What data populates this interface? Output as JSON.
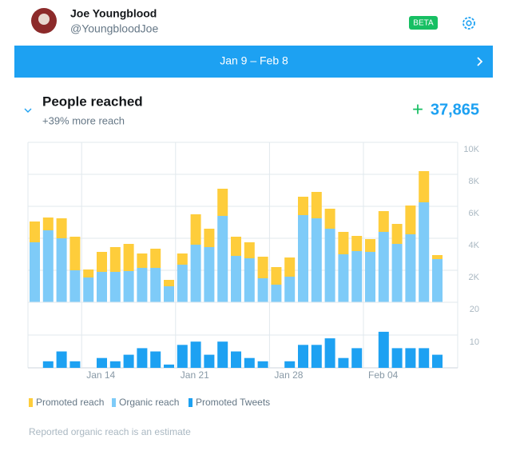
{
  "header": {
    "name": "Joe Youngblood",
    "handle": "@YoungbloodJoe",
    "badge": "BETA"
  },
  "date_range": "Jan 9 – Feb 8",
  "card": {
    "title": "People reached",
    "subtitle": "+39% more reach",
    "total_sign": "+",
    "total": "37,865"
  },
  "chart_data": [
    {
      "type": "stacked-bar",
      "categories": [
        null,
        null,
        null,
        null,
        "Jan 14",
        null,
        null,
        null,
        null,
        null,
        null,
        "Jan 21",
        null,
        null,
        null,
        null,
        null,
        null,
        "Jan 28",
        null,
        null,
        null,
        null,
        null,
        null,
        "Feb 04",
        null,
        null,
        null,
        null,
        null
      ],
      "series": [
        {
          "name": "Promoted reach",
          "color": "#fecd3b",
          "values": [
            1300,
            800,
            1250,
            2100,
            500,
            1250,
            1550,
            1700,
            900,
            1200,
            400,
            700,
            1900,
            1150,
            1700,
            1200,
            1000,
            1350,
            1100,
            1200,
            1150,
            1650,
            1250,
            1400,
            950,
            800,
            1300,
            1250,
            1800,
            1950,
            250
          ]
        },
        {
          "name": "Organic reach",
          "color": "#7ecbf8",
          "values": [
            3750,
            4500,
            4000,
            2000,
            1550,
            1900,
            1900,
            1950,
            2150,
            2150,
            1000,
            2350,
            3600,
            3450,
            5400,
            2900,
            2750,
            1500,
            1100,
            1600,
            5450,
            5250,
            4600,
            3000,
            3200,
            3150,
            4400,
            3650,
            4250,
            6250,
            2700
          ]
        }
      ],
      "ylim": [
        0,
        10000
      ],
      "yticks": [
        {
          "value": 2000,
          "label": "2K"
        },
        {
          "value": 4000,
          "label": "4K"
        },
        {
          "value": 6000,
          "label": "6K"
        },
        {
          "value": 8000,
          "label": "8K"
        },
        {
          "value": 10000,
          "label": "10K"
        }
      ],
      "grid": true
    },
    {
      "type": "bar",
      "series": [
        {
          "name": "Promoted Tweets",
          "color": "#1da1f2",
          "values": [
            0,
            2,
            5,
            2,
            0,
            3,
            2,
            4,
            6,
            5,
            1,
            7,
            8,
            4,
            8,
            5,
            3,
            2,
            0,
            2,
            7,
            7,
            9,
            3,
            6,
            0,
            11,
            6,
            6,
            6,
            4
          ]
        }
      ],
      "ylim": [
        0,
        20
      ],
      "yticks": [
        10,
        20
      ],
      "grid": true
    }
  ],
  "footer": "Reported organic reach is an estimate"
}
